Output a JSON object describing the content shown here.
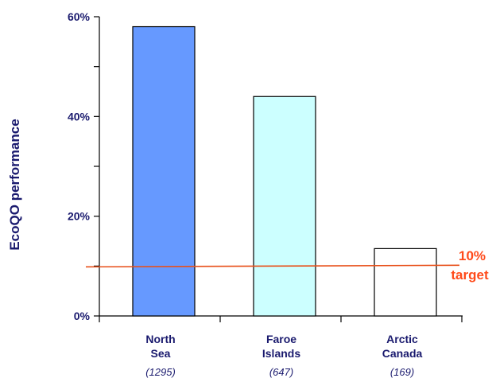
{
  "chart_data": {
    "type": "bar",
    "ylabel": "EcoQO performance",
    "ylim": [
      0,
      60
    ],
    "yticks": [
      {
        "value": 0,
        "label": "0%"
      },
      {
        "value": 20,
        "label": "20%"
      },
      {
        "value": 40,
        "label": "40%"
      },
      {
        "value": 60,
        "label": "60%"
      }
    ],
    "y_minor_ticks": [
      10,
      30,
      50
    ],
    "categories": [
      {
        "lines": [
          "North",
          "Sea"
        ],
        "sub": "(1295)",
        "value": 58,
        "color": "#6699ff"
      },
      {
        "lines": [
          "Faroe",
          "Islands"
        ],
        "sub": "(647)",
        "value": 44,
        "color": "#ccffff"
      },
      {
        "lines": [
          "Arctic",
          "Canada"
        ],
        "sub": "(169)",
        "value": 13.5,
        "color": "#ffffff"
      }
    ],
    "target": {
      "value": 10,
      "label_lines": [
        "10%",
        "target"
      ],
      "color": "#e8501a"
    },
    "grid": false,
    "legend": "none"
  }
}
